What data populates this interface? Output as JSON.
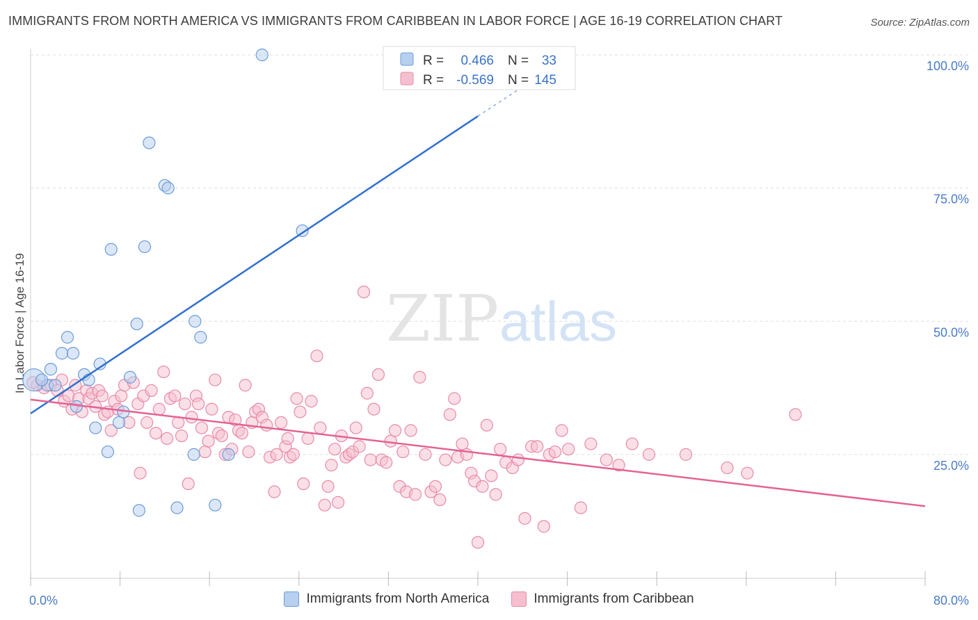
{
  "title": "IMMIGRANTS FROM NORTH AMERICA VS IMMIGRANTS FROM CARIBBEAN IN LABOR FORCE | AGE 16-19 CORRELATION CHART",
  "source": "Source: ZipAtlas.com",
  "watermark": {
    "zip": "ZIP",
    "atlas": "atlas"
  },
  "colors": {
    "blue_fill": "#b7d0ef",
    "blue_stroke": "#6b9bd8",
    "blue_line": "#2f6fce",
    "pink_fill": "#f5bfd0",
    "pink_stroke": "#e88aa8",
    "pink_line": "#e36392",
    "grid": "#dddddd",
    "tick_label": "#4a7cc9"
  },
  "chart_data": {
    "type": "scatter",
    "xlabel": "",
    "ylabel": "In Labor Force | Age 16-19",
    "xlim": [
      0,
      80
    ],
    "ylim": [
      0,
      105
    ],
    "x_tick_labels": [
      {
        "value": 0,
        "label": "0.0%"
      },
      {
        "value": 80,
        "label": "80.0%"
      }
    ],
    "y_tick_labels": [
      {
        "value": 25,
        "label": "25.0%"
      },
      {
        "value": 50,
        "label": "50.0%"
      },
      {
        "value": 75,
        "label": "75.0%"
      },
      {
        "value": 100,
        "label": "100.0%"
      }
    ],
    "grid": "horizontal dashed",
    "legend_position": "top-center",
    "series": [
      {
        "name": "Immigrants from North America",
        "color": "#6b9bd8",
        "stats": {
          "r_label": "R =",
          "r": "0.466",
          "n_label": "N =",
          "n": "33"
        },
        "trend": {
          "x0": 0,
          "y0": 32.7,
          "x1": 40,
          "y1": 88.5,
          "dash_to_x": 44,
          "dash_to_y": 94
        },
        "points": [
          [
            0.3,
            39
          ],
          [
            1.5,
            38
          ],
          [
            1.0,
            39
          ],
          [
            1.8,
            41
          ],
          [
            2.2,
            38
          ],
          [
            2.8,
            44
          ],
          [
            3.3,
            47
          ],
          [
            3.8,
            44
          ],
          [
            4.1,
            34
          ],
          [
            4.8,
            40
          ],
          [
            5.2,
            39
          ],
          [
            5.8,
            30
          ],
          [
            6.2,
            42
          ],
          [
            6.9,
            25.5
          ],
          [
            7.2,
            63.5
          ],
          [
            7.9,
            31
          ],
          [
            8.3,
            33
          ],
          [
            8.9,
            39.5
          ],
          [
            9.5,
            49.5
          ],
          [
            9.7,
            14.5
          ],
          [
            10.2,
            64
          ],
          [
            10.6,
            83.5
          ],
          [
            12.0,
            75.5
          ],
          [
            12.3,
            75
          ],
          [
            13.1,
            15
          ],
          [
            14.6,
            25
          ],
          [
            14.7,
            50
          ],
          [
            15.2,
            47
          ],
          [
            16.5,
            15.5
          ],
          [
            17.7,
            25
          ],
          [
            20.7,
            100
          ],
          [
            24.3,
            67
          ],
          [
            33.6,
            100
          ]
        ]
      },
      {
        "name": "Immigrants from Caribbean",
        "color": "#e88aa8",
        "stats": {
          "r_label": "R =",
          "r": "-0.569",
          "n_label": "N =",
          "n": "145"
        },
        "trend": {
          "x0": 0,
          "y0": 35.3,
          "x1": 80,
          "y1": 15.3
        },
        "points": [
          [
            0.6,
            38
          ],
          [
            1.2,
            37.5
          ],
          [
            1.8,
            38
          ],
          [
            2.4,
            37
          ],
          [
            2.8,
            39
          ],
          [
            3.0,
            35
          ],
          [
            3.4,
            36
          ],
          [
            3.7,
            33.5
          ],
          [
            4.0,
            38
          ],
          [
            4.3,
            35.5
          ],
          [
            4.6,
            33
          ],
          [
            5.0,
            37
          ],
          [
            5.2,
            35.5
          ],
          [
            5.5,
            36.5
          ],
          [
            5.8,
            34
          ],
          [
            6.1,
            37
          ],
          [
            6.4,
            36
          ],
          [
            6.6,
            32.5
          ],
          [
            6.9,
            33
          ],
          [
            7.2,
            29.5
          ],
          [
            7.5,
            35
          ],
          [
            7.8,
            33.5
          ],
          [
            8.1,
            36
          ],
          [
            8.4,
            38
          ],
          [
            8.8,
            31
          ],
          [
            9.2,
            38.5
          ],
          [
            9.6,
            34.5
          ],
          [
            9.8,
            21.5
          ],
          [
            10.1,
            36
          ],
          [
            10.4,
            31
          ],
          [
            10.8,
            37
          ],
          [
            11.2,
            29
          ],
          [
            11.5,
            33.5
          ],
          [
            11.9,
            40.5
          ],
          [
            12.2,
            28
          ],
          [
            12.5,
            35.5
          ],
          [
            12.9,
            36
          ],
          [
            13.2,
            31
          ],
          [
            13.5,
            28.5
          ],
          [
            13.8,
            34.5
          ],
          [
            14.1,
            19.5
          ],
          [
            14.4,
            32
          ],
          [
            14.8,
            36
          ],
          [
            15.0,
            34.5
          ],
          [
            15.3,
            30
          ],
          [
            15.6,
            25.5
          ],
          [
            15.9,
            27.5
          ],
          [
            16.2,
            33.5
          ],
          [
            16.5,
            39
          ],
          [
            16.8,
            29
          ],
          [
            17.1,
            28.5
          ],
          [
            17.4,
            25
          ],
          [
            17.7,
            32
          ],
          [
            18.0,
            26
          ],
          [
            18.3,
            31.5
          ],
          [
            18.6,
            29.5
          ],
          [
            18.9,
            29
          ],
          [
            19.2,
            38
          ],
          [
            19.5,
            25.5
          ],
          [
            19.8,
            31
          ],
          [
            20.1,
            33
          ],
          [
            20.4,
            33.5
          ],
          [
            20.7,
            32
          ],
          [
            21.1,
            30.5
          ],
          [
            21.4,
            24.5
          ],
          [
            21.8,
            18
          ],
          [
            22.0,
            25
          ],
          [
            22.4,
            31
          ],
          [
            22.8,
            26.5
          ],
          [
            23.0,
            28
          ],
          [
            23.2,
            24.5
          ],
          [
            23.5,
            25
          ],
          [
            23.8,
            35.5
          ],
          [
            24.1,
            33
          ],
          [
            24.4,
            19.5
          ],
          [
            24.8,
            28
          ],
          [
            25.1,
            35
          ],
          [
            25.6,
            43.5
          ],
          [
            25.9,
            30
          ],
          [
            26.3,
            15.5
          ],
          [
            26.6,
            19
          ],
          [
            26.9,
            23
          ],
          [
            27.2,
            26
          ],
          [
            27.5,
            16
          ],
          [
            27.8,
            28.5
          ],
          [
            28.2,
            24.5
          ],
          [
            28.5,
            25
          ],
          [
            28.8,
            25.5
          ],
          [
            29.1,
            30
          ],
          [
            29.4,
            26.5
          ],
          [
            29.8,
            55.5
          ],
          [
            30.1,
            36.5
          ],
          [
            30.4,
            24
          ],
          [
            30.7,
            33.5
          ],
          [
            31.1,
            40
          ],
          [
            31.4,
            24
          ],
          [
            31.8,
            23.5
          ],
          [
            32.2,
            27.5
          ],
          [
            32.6,
            29.5
          ],
          [
            33.0,
            19
          ],
          [
            33.3,
            25.5
          ],
          [
            33.6,
            18
          ],
          [
            34.0,
            29.5
          ],
          [
            34.4,
            17.5
          ],
          [
            34.8,
            39.5
          ],
          [
            35.3,
            25
          ],
          [
            35.8,
            18
          ],
          [
            36.2,
            19
          ],
          [
            36.6,
            16.5
          ],
          [
            37.1,
            24
          ],
          [
            37.5,
            32.5
          ],
          [
            37.9,
            35.5
          ],
          [
            38.2,
            24.5
          ],
          [
            38.6,
            27
          ],
          [
            39.0,
            25
          ],
          [
            39.4,
            21.5
          ],
          [
            39.7,
            20
          ],
          [
            40.0,
            8.5
          ],
          [
            40.4,
            19
          ],
          [
            40.8,
            30.5
          ],
          [
            41.2,
            21
          ],
          [
            41.6,
            17.5
          ],
          [
            42.0,
            26
          ],
          [
            42.5,
            23.5
          ],
          [
            43.1,
            22.5
          ],
          [
            43.6,
            24
          ],
          [
            44.2,
            13
          ],
          [
            44.8,
            26.5
          ],
          [
            45.3,
            26.5
          ],
          [
            45.9,
            11.5
          ],
          [
            46.4,
            25
          ],
          [
            46.9,
            25.5
          ],
          [
            47.5,
            29.5
          ],
          [
            48.1,
            26
          ],
          [
            49.2,
            15
          ],
          [
            50.1,
            27
          ],
          [
            51.5,
            24
          ],
          [
            52.6,
            23
          ],
          [
            53.8,
            27
          ],
          [
            55.3,
            25
          ],
          [
            58.6,
            25
          ],
          [
            62.3,
            22.5
          ],
          [
            64.1,
            21.5
          ],
          [
            68.4,
            32.5
          ],
          [
            0.2,
            38.5
          ]
        ]
      }
    ]
  }
}
